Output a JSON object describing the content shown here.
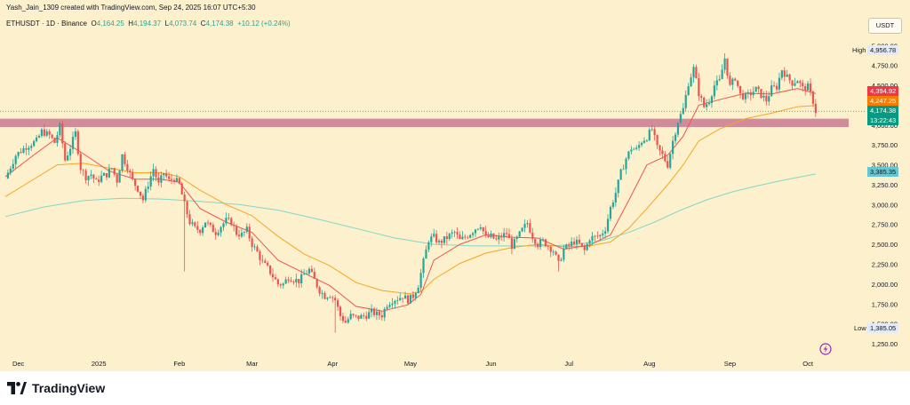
{
  "header": {
    "creator": "Yash_Jain_1309 created with TradingView.com, Sep 24, 2025 16:07 UTC+5:30"
  },
  "symbol": {
    "name": "ETHUSDT · 1D · Binance",
    "open_label": "O",
    "open": "4,164.25",
    "high_label": "H",
    "high": "4,194.37",
    "low_label": "L",
    "low": "4,073.74",
    "close_label": "C",
    "close": "4,174.38",
    "change": "+10.12 (+0.24%)"
  },
  "currency_button": "USDT",
  "footer": {
    "brand": "TradingView"
  },
  "colors": {
    "background": "#fdf0cd",
    "up": "#26a69a",
    "down": "#ef5350",
    "ema_fast": "#ef5350",
    "ema_mid": "#f5a623",
    "ema_slow": "#80d8c8",
    "zone": "#c97a8f"
  },
  "price_tags": {
    "high_label": "High",
    "high_value": "4,956.78",
    "ema_fast": "4,394.92",
    "ema_mid": "4,247.25",
    "last": "4,174.38",
    "countdown": "13:22:43",
    "ema_slow": "3,385.35",
    "low_label": "Low",
    "low_value": "1,385.05"
  },
  "chart_data": {
    "type": "candlestick",
    "y_ticks": [
      "5,000.00",
      "4,750.00",
      "4,500.00",
      "4,250.00",
      "4,000.00",
      "3,750.00",
      "3,500.00",
      "3,250.00",
      "3,000.00",
      "2,750.00",
      "2,500.00",
      "2,250.00",
      "2,000.00",
      "1,750.00",
      "1,500.00",
      "1,250.00"
    ],
    "y_tick_values": [
      5000,
      4750,
      4500,
      4250,
      4000,
      3750,
      3500,
      3250,
      3000,
      2750,
      2500,
      2250,
      2000,
      1750,
      1500,
      1250
    ],
    "ylim": [
      1150,
      5070
    ],
    "x_labels": [
      "Dec",
      "2025",
      "Feb",
      "Mar",
      "Apr",
      "May",
      "Jun",
      "Jul",
      "Aug",
      "Sep",
      "Oct"
    ],
    "x_label_days": [
      0,
      31,
      62,
      90,
      121,
      151,
      182,
      212,
      243,
      274,
      304
    ],
    "xlim": [
      -5,
      318
    ],
    "resistance_zone": [
      3975,
      4080
    ],
    "close_path": [
      [
        -5,
        3330
      ],
      [
        -1,
        3620
      ],
      [
        3,
        3730
      ],
      [
        7,
        3800
      ],
      [
        9,
        3920
      ],
      [
        12,
        3870
      ],
      [
        14,
        3780
      ],
      [
        16,
        3980
      ],
      [
        18,
        3560
      ],
      [
        20,
        3720
      ],
      [
        22,
        3900
      ],
      [
        24,
        3460
      ],
      [
        26,
        3350
      ],
      [
        28,
        3380
      ],
      [
        30,
        3280
      ],
      [
        32,
        3350
      ],
      [
        34,
        3380
      ],
      [
        36,
        3460
      ],
      [
        38,
        3300
      ],
      [
        40,
        3620
      ],
      [
        42,
        3470
      ],
      [
        44,
        3300
      ],
      [
        46,
        3200
      ],
      [
        48,
        3060
      ],
      [
        50,
        3260
      ],
      [
        52,
        3450
      ],
      [
        54,
        3250
      ],
      [
        56,
        3400
      ],
      [
        58,
        3300
      ],
      [
        60,
        3330
      ],
      [
        62,
        3250
      ],
      [
        64,
        3000
      ],
      [
        66,
        2780
      ],
      [
        68,
        2700
      ],
      [
        70,
        2680
      ],
      [
        72,
        2790
      ],
      [
        74,
        2710
      ],
      [
        76,
        2650
      ],
      [
        78,
        2730
      ],
      [
        80,
        2800
      ],
      [
        82,
        2780
      ],
      [
        84,
        2640
      ],
      [
        86,
        2620
      ],
      [
        88,
        2680
      ],
      [
        90,
        2500
      ],
      [
        92,
        2400
      ],
      [
        94,
        2270
      ],
      [
        96,
        2200
      ],
      [
        98,
        2100
      ],
      [
        100,
        2000
      ],
      [
        102,
        2000
      ],
      [
        104,
        2090
      ],
      [
        106,
        2060
      ],
      [
        108,
        2040
      ],
      [
        110,
        2120
      ],
      [
        112,
        2180
      ],
      [
        114,
        2050
      ],
      [
        116,
        1920
      ],
      [
        118,
        1850
      ],
      [
        120,
        1870
      ],
      [
        122,
        1800
      ],
      [
        124,
        1600
      ],
      [
        126,
        1520
      ],
      [
        128,
        1600
      ],
      [
        130,
        1580
      ],
      [
        132,
        1590
      ],
      [
        134,
        1610
      ],
      [
        136,
        1650
      ],
      [
        138,
        1620
      ],
      [
        140,
        1610
      ],
      [
        142,
        1750
      ],
      [
        144,
        1800
      ],
      [
        146,
        1820
      ],
      [
        148,
        1850
      ],
      [
        150,
        1800
      ],
      [
        152,
        1850
      ],
      [
        154,
        1990
      ],
      [
        156,
        2280
      ],
      [
        158,
        2560
      ],
      [
        160,
        2590
      ],
      [
        162,
        2520
      ],
      [
        164,
        2560
      ],
      [
        166,
        2610
      ],
      [
        168,
        2650
      ],
      [
        170,
        2550
      ],
      [
        172,
        2590
      ],
      [
        174,
        2640
      ],
      [
        176,
        2700
      ],
      [
        178,
        2750
      ],
      [
        180,
        2580
      ],
      [
        182,
        2600
      ],
      [
        184,
        2550
      ],
      [
        186,
        2600
      ],
      [
        188,
        2640
      ],
      [
        190,
        2480
      ],
      [
        192,
        2570
      ],
      [
        194,
        2680
      ],
      [
        196,
        2770
      ],
      [
        198,
        2600
      ],
      [
        200,
        2500
      ],
      [
        202,
        2540
      ],
      [
        204,
        2480
      ],
      [
        206,
        2420
      ],
      [
        208,
        2250
      ],
      [
        210,
        2440
      ],
      [
        212,
        2480
      ],
      [
        214,
        2540
      ],
      [
        216,
        2500
      ],
      [
        218,
        2420
      ],
      [
        220,
        2580
      ],
      [
        222,
        2590
      ],
      [
        224,
        2610
      ],
      [
        226,
        2700
      ],
      [
        228,
        2960
      ],
      [
        230,
        3150
      ],
      [
        232,
        3400
      ],
      [
        234,
        3580
      ],
      [
        236,
        3710
      ],
      [
        238,
        3690
      ],
      [
        240,
        3800
      ],
      [
        242,
        3850
      ],
      [
        244,
        3950
      ],
      [
        246,
        3710
      ],
      [
        248,
        3620
      ],
      [
        250,
        3500
      ],
      [
        252,
        3800
      ],
      [
        254,
        4050
      ],
      [
        256,
        4200
      ],
      [
        258,
        4530
      ],
      [
        260,
        4710
      ],
      [
        262,
        4400
      ],
      [
        264,
        4230
      ],
      [
        266,
        4310
      ],
      [
        268,
        4500
      ],
      [
        270,
        4550
      ],
      [
        272,
        4840
      ],
      [
        274,
        4480
      ],
      [
        276,
        4600
      ],
      [
        278,
        4380
      ],
      [
        280,
        4350
      ],
      [
        282,
        4400
      ],
      [
        284,
        4450
      ],
      [
        286,
        4380
      ],
      [
        288,
        4310
      ],
      [
        290,
        4460
      ],
      [
        292,
        4480
      ],
      [
        294,
        4700
      ],
      [
        296,
        4600
      ],
      [
        298,
        4530
      ],
      [
        300,
        4570
      ],
      [
        302,
        4460
      ],
      [
        304,
        4480
      ],
      [
        306,
        4300
      ],
      [
        307,
        4174
      ]
    ],
    "ema_fast_path": [
      [
        -5,
        3350
      ],
      [
        5,
        3600
      ],
      [
        15,
        3840
      ],
      [
        25,
        3640
      ],
      [
        35,
        3420
      ],
      [
        45,
        3320
      ],
      [
        55,
        3320
      ],
      [
        62,
        3280
      ],
      [
        70,
        2950
      ],
      [
        80,
        2780
      ],
      [
        90,
        2650
      ],
      [
        100,
        2300
      ],
      [
        110,
        2140
      ],
      [
        120,
        1980
      ],
      [
        130,
        1720
      ],
      [
        140,
        1660
      ],
      [
        150,
        1740
      ],
      [
        155,
        1870
      ],
      [
        160,
        2300
      ],
      [
        170,
        2500
      ],
      [
        180,
        2620
      ],
      [
        190,
        2590
      ],
      [
        200,
        2580
      ],
      [
        210,
        2440
      ],
      [
        220,
        2490
      ],
      [
        228,
        2620
      ],
      [
        235,
        3050
      ],
      [
        242,
        3500
      ],
      [
        250,
        3620
      ],
      [
        256,
        3860
      ],
      [
        262,
        4250
      ],
      [
        270,
        4320
      ],
      [
        280,
        4400
      ],
      [
        290,
        4390
      ],
      [
        300,
        4460
      ],
      [
        307,
        4395
      ]
    ],
    "ema_mid_path": [
      [
        -5,
        3100
      ],
      [
        5,
        3300
      ],
      [
        15,
        3500
      ],
      [
        25,
        3520
      ],
      [
        35,
        3460
      ],
      [
        45,
        3400
      ],
      [
        55,
        3400
      ],
      [
        62,
        3350
      ],
      [
        70,
        3180
      ],
      [
        80,
        3000
      ],
      [
        90,
        2860
      ],
      [
        100,
        2600
      ],
      [
        110,
        2380
      ],
      [
        120,
        2230
      ],
      [
        130,
        2020
      ],
      [
        140,
        1920
      ],
      [
        150,
        1880
      ],
      [
        155,
        1900
      ],
      [
        160,
        2060
      ],
      [
        170,
        2260
      ],
      [
        180,
        2390
      ],
      [
        190,
        2460
      ],
      [
        200,
        2500
      ],
      [
        210,
        2470
      ],
      [
        220,
        2480
      ],
      [
        228,
        2530
      ],
      [
        235,
        2700
      ],
      [
        242,
        2950
      ],
      [
        250,
        3250
      ],
      [
        256,
        3500
      ],
      [
        262,
        3800
      ],
      [
        270,
        3950
      ],
      [
        280,
        4080
      ],
      [
        290,
        4150
      ],
      [
        300,
        4230
      ],
      [
        307,
        4247
      ]
    ],
    "ema_slow_path": [
      [
        -5,
        2850
      ],
      [
        10,
        2970
      ],
      [
        25,
        3050
      ],
      [
        40,
        3080
      ],
      [
        55,
        3070
      ],
      [
        70,
        3040
      ],
      [
        85,
        3000
      ],
      [
        100,
        2930
      ],
      [
        115,
        2820
      ],
      [
        130,
        2700
      ],
      [
        145,
        2580
      ],
      [
        160,
        2500
      ],
      [
        175,
        2480
      ],
      [
        190,
        2480
      ],
      [
        205,
        2480
      ],
      [
        215,
        2500
      ],
      [
        225,
        2550
      ],
      [
        235,
        2650
      ],
      [
        245,
        2780
      ],
      [
        255,
        2930
      ],
      [
        265,
        3060
      ],
      [
        275,
        3160
      ],
      [
        285,
        3240
      ],
      [
        295,
        3310
      ],
      [
        307,
        3385
      ]
    ],
    "long_wicks": [
      [
        64,
        2160
      ],
      [
        208,
        2160
      ],
      [
        122,
        1390
      ]
    ],
    "high": 4956.78,
    "low": 1385.05
  }
}
